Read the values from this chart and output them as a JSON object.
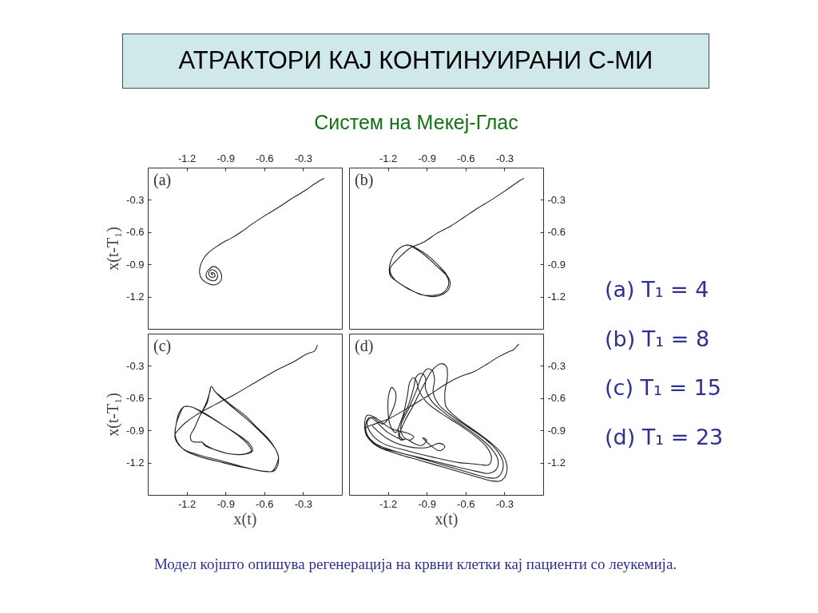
{
  "chart_data": [
    {
      "type": "line",
      "annotations": [
        "(a)"
      ],
      "xlim": [
        -1.5,
        0
      ],
      "ylim": [
        -1.5,
        0
      ],
      "xticks": [
        -1.2,
        -0.9,
        -0.6,
        -0.3
      ],
      "yticks": [
        -0.3,
        -0.6,
        -0.9,
        -1.2
      ],
      "ylabel": "x(t-T₁)",
      "series": [
        {
          "color": "#222222",
          "x": [
            -0.14,
            -0.21,
            -0.28,
            -0.39,
            -0.49,
            -0.6,
            -0.7,
            -0.78,
            -0.86,
            -0.91,
            -0.95,
            -1.01,
            -1.06,
            -1.09,
            -1.1,
            -1.08,
            -1.03,
            -0.98,
            -0.94,
            -0.93,
            -0.95,
            -0.99,
            -1.03,
            -1.05,
            -1.03,
            -0.98,
            -0.96,
            -0.97,
            -1.01,
            -1.03,
            -1.01,
            -0.98,
            -0.99,
            -1.01,
            -1.0,
            -1.0
          ],
          "values": [
            -0.1,
            -0.15,
            -0.21,
            -0.29,
            -0.37,
            -0.45,
            -0.53,
            -0.6,
            -0.66,
            -0.69,
            -0.72,
            -0.77,
            -0.83,
            -0.9,
            -0.98,
            -1.04,
            -1.08,
            -1.09,
            -1.06,
            -1.0,
            -0.95,
            -0.92,
            -0.95,
            -1.0,
            -1.04,
            -1.05,
            -1.01,
            -0.97,
            -0.95,
            -0.99,
            -1.02,
            -1.01,
            -0.98,
            -0.98,
            -1.0,
            -0.99
          ]
        }
      ]
    },
    {
      "type": "line",
      "annotations": [
        "(b)"
      ],
      "xlim": [
        -1.5,
        0
      ],
      "ylim": [
        -1.5,
        0
      ],
      "xticks": [
        -1.2,
        -0.9,
        -0.6,
        -0.3
      ],
      "yticks": [
        -0.3,
        -0.6,
        -0.9,
        -1.2
      ],
      "series": [
        {
          "color": "#222222",
          "x": [
            -0.15,
            -0.18,
            -0.3,
            -0.4,
            -0.51,
            -0.61,
            -0.71,
            -0.82,
            -0.92,
            -1.03,
            -1.09,
            -1.14,
            -1.18,
            -1.18,
            -1.14,
            -1.05,
            -0.95,
            -0.86,
            -0.78,
            -0.74,
            -0.73,
            -0.75,
            -0.82,
            -0.9,
            -0.98,
            -1.05,
            -1.1,
            -1.15,
            -1.18,
            -1.19,
            -1.18,
            -1.13,
            -1.04,
            -0.94,
            -0.85,
            -0.78,
            -0.73,
            -0.72,
            -0.75,
            -0.81,
            -0.89,
            -0.98,
            -1.04,
            -1.1,
            -1.15,
            -1.18,
            -1.19,
            -1.18
          ],
          "values": [
            -0.1,
            -0.12,
            -0.22,
            -0.3,
            -0.38,
            -0.46,
            -0.54,
            -0.61,
            -0.69,
            -0.75,
            -0.81,
            -0.87,
            -0.93,
            -0.98,
            -1.05,
            -1.12,
            -1.18,
            -1.19,
            -1.17,
            -1.12,
            -1.06,
            -1.0,
            -0.92,
            -0.83,
            -0.76,
            -0.72,
            -0.74,
            -0.8,
            -0.88,
            -0.95,
            -1.01,
            -1.06,
            -1.13,
            -1.18,
            -1.2,
            -1.18,
            -1.13,
            -1.06,
            -0.99,
            -0.91,
            -0.82,
            -0.75,
            -0.72,
            -0.74,
            -0.8,
            -0.88,
            -0.95,
            -1.01
          ]
        }
      ]
    },
    {
      "type": "line",
      "annotations": [
        "(c)"
      ],
      "xlim": [
        -1.5,
        0
      ],
      "ylim": [
        -1.5,
        0
      ],
      "xticks": [
        -1.2,
        -0.9,
        -0.6,
        -0.3
      ],
      "yticks": [
        -0.3,
        -0.6,
        -0.9,
        -1.2
      ],
      "xlabel": "x(t)",
      "ylabel": "x(t-T₁)",
      "series": [
        {
          "color": "#222222",
          "x": [
            -0.19,
            -0.21,
            -0.25,
            -0.29,
            -0.37,
            -0.49,
            -0.65,
            -0.82,
            -0.98,
            -1.13,
            -1.21,
            -1.26,
            -1.29,
            -1.28,
            -1.23,
            -1.13,
            -0.94,
            -0.76,
            -0.61,
            -0.54,
            -0.51,
            -0.49,
            -0.51,
            -0.56,
            -0.65,
            -0.76,
            -0.86,
            -0.94,
            -0.98,
            -1.01,
            -1.02,
            -1.05,
            -1.1,
            -1.14,
            -1.17,
            -1.16,
            -1.12,
            -1.08,
            -1.06,
            -0.98,
            -0.86,
            -0.75,
            -0.7,
            -0.72,
            -0.8,
            -0.92,
            -1.07,
            -1.17,
            -1.22,
            -1.26,
            -1.28,
            -1.29,
            -1.27,
            -1.22,
            -1.11,
            -0.92,
            -0.74,
            -0.6,
            -0.53,
            -0.5,
            -0.49,
            -0.51,
            -0.56,
            -0.65,
            -0.75,
            -0.86,
            -0.94,
            -0.98,
            -1.01,
            -1.02,
            -1.04,
            -1.1,
            -1.14,
            -1.17,
            -1.16,
            -1.12,
            -1.08,
            -1.05,
            -0.98,
            -0.86,
            -0.74,
            -0.69,
            -0.71,
            -0.79,
            -0.92,
            -1.06,
            -1.17,
            -1.22,
            -1.25,
            -1.28,
            -1.29
          ],
          "values": [
            -0.11,
            -0.16,
            -0.18,
            -0.2,
            -0.26,
            -0.33,
            -0.44,
            -0.56,
            -0.66,
            -0.76,
            -0.83,
            -0.89,
            -0.94,
            -1.0,
            -1.07,
            -1.12,
            -1.18,
            -1.24,
            -1.28,
            -1.28,
            -1.23,
            -1.15,
            -1.08,
            -1.0,
            -0.89,
            -0.77,
            -0.67,
            -0.59,
            -0.54,
            -0.49,
            -0.54,
            -0.65,
            -0.77,
            -0.88,
            -0.95,
            -1.0,
            -1.01,
            -1.01,
            -1.04,
            -1.08,
            -1.12,
            -1.12,
            -1.09,
            -1.04,
            -0.95,
            -0.85,
            -0.74,
            -0.68,
            -0.68,
            -0.74,
            -0.84,
            -0.93,
            -1.01,
            -1.08,
            -1.14,
            -1.2,
            -1.25,
            -1.28,
            -1.28,
            -1.24,
            -1.15,
            -1.08,
            -0.99,
            -0.88,
            -0.76,
            -0.66,
            -0.58,
            -0.54,
            -0.49,
            -0.53,
            -0.64,
            -0.77,
            -0.88,
            -0.95,
            -1.0,
            -1.01,
            -1.01,
            -1.04,
            -1.08,
            -1.12,
            -1.12,
            -1.09,
            -1.03,
            -0.95,
            -0.85,
            -0.74,
            -0.68,
            -0.68,
            -0.74,
            -0.84,
            -0.93
          ]
        }
      ]
    },
    {
      "type": "line",
      "annotations": [
        "(d)"
      ],
      "xlim": [
        -1.5,
        0
      ],
      "ylim": [
        -1.5,
        0
      ],
      "xticks": [
        -1.2,
        -0.9,
        -0.6,
        -0.3
      ],
      "yticks": [
        -0.3,
        -0.6,
        -0.9,
        -1.2
      ],
      "xlabel": "x(t)",
      "series": [
        {
          "color": "#222222",
          "x": [
            -0.19,
            -0.23,
            -0.27,
            -0.35,
            -0.43,
            -0.53,
            -0.64,
            -0.74,
            -0.88,
            -1.03,
            -1.19,
            -1.3,
            -1.37,
            -1.35,
            -1.28,
            -1.15,
            -0.95,
            -0.75,
            -0.55,
            -0.4,
            -0.33,
            -0.29,
            -0.28,
            -0.31,
            -0.39,
            -0.52,
            -0.66,
            -0.75,
            -0.76,
            -0.74,
            -0.75,
            -0.79,
            -0.85,
            -0.92,
            -1.0,
            -1.08,
            -1.11,
            -1.08,
            -1.2,
            -1.34,
            -1.37,
            -1.36,
            -1.3,
            -1.18,
            -0.98,
            -0.78,
            -0.58,
            -0.43,
            -0.36,
            -0.32,
            -0.31,
            -0.35,
            -0.44,
            -0.57,
            -0.7,
            -0.8,
            -0.85,
            -0.84,
            -0.86,
            -0.9,
            -0.94,
            -0.98,
            -1.04,
            -1.1,
            -1.08,
            -1.03,
            -1.0,
            -1.04,
            -1.18,
            -1.3,
            -1.36,
            -1.38,
            -1.36,
            -1.27,
            -1.1,
            -0.9,
            -0.7,
            -0.52,
            -0.42,
            -0.36,
            -0.35,
            -0.4,
            -0.5,
            -0.63,
            -0.76,
            -0.86,
            -0.91,
            -0.91,
            -0.94,
            -0.98,
            -1.0,
            -1.04,
            -1.1,
            -1.14,
            -1.18,
            -1.2,
            -1.19,
            -1.17,
            -1.14,
            -1.16,
            -1.24,
            -1.32,
            -1.36,
            -1.33,
            -1.24,
            -1.05,
            -0.85,
            -0.65,
            -0.55,
            -0.48,
            -0.42,
            -0.4,
            -0.44,
            -0.53,
            -0.66,
            -0.79,
            -0.9,
            -0.96,
            -0.98,
            -1.0,
            -1.03,
            -1.05,
            -1.08,
            -1.12,
            -1.1,
            -1.06,
            -1.0,
            -0.94,
            -0.9,
            -0.93,
            -0.86,
            -0.8,
            -0.76,
            -0.8,
            -0.9,
            -1.05,
            -1.2,
            -1.32
          ],
          "values": [
            -0.1,
            -0.15,
            -0.17,
            -0.22,
            -0.28,
            -0.35,
            -0.4,
            -0.46,
            -0.57,
            -0.68,
            -0.79,
            -0.84,
            -0.88,
            -0.97,
            -1.05,
            -1.11,
            -1.18,
            -1.25,
            -1.32,
            -1.37,
            -1.37,
            -1.32,
            -1.23,
            -1.13,
            -1.03,
            -0.91,
            -0.79,
            -0.68,
            -0.55,
            -0.4,
            -0.3,
            -0.28,
            -0.33,
            -0.47,
            -0.66,
            -0.84,
            -0.95,
            -0.99,
            -0.92,
            -0.78,
            -0.84,
            -0.94,
            -1.02,
            -1.08,
            -1.15,
            -1.22,
            -1.29,
            -1.34,
            -1.34,
            -1.29,
            -1.2,
            -1.1,
            -0.99,
            -0.88,
            -0.77,
            -0.67,
            -0.55,
            -0.42,
            -0.34,
            -0.33,
            -0.4,
            -0.53,
            -0.7,
            -0.86,
            -0.96,
            -0.99,
            -0.96,
            -0.93,
            -0.88,
            -0.78,
            -0.76,
            -0.86,
            -0.96,
            -1.05,
            -1.11,
            -1.17,
            -1.23,
            -1.28,
            -1.3,
            -1.26,
            -1.17,
            -1.07,
            -0.96,
            -0.85,
            -0.74,
            -0.63,
            -0.51,
            -0.41,
            -0.37,
            -0.4,
            -0.5,
            -0.66,
            -0.82,
            -0.92,
            -0.86,
            -0.7,
            -0.55,
            -0.5,
            -0.55,
            -0.7,
            -0.84,
            -0.78,
            -0.82,
            -0.93,
            -1.02,
            -1.09,
            -1.15,
            -1.2,
            -1.21,
            -1.22,
            -1.22,
            -1.15,
            -1.05,
            -0.95,
            -0.84,
            -0.74,
            -0.64,
            -0.53,
            -0.44,
            -0.41,
            -0.45,
            -0.58,
            -0.75,
            -0.9,
            -0.99,
            -0.98,
            -1.02,
            -1.04,
            -0.99,
            -0.97,
            -1.05,
            -1.09,
            -1.05,
            -1.02,
            -1.06,
            -1.05,
            -0.98,
            -0.86
          ]
        }
      ]
    },
    {
      "type": "other",
      "title": "АТРАКТОРИ КАЈ КОНТИНУИРАНИ С-МИ",
      "subtitle": "Систем на Мекеј-Глас",
      "annotations": [
        "(a) T₁ = 4",
        "(b) T₁ = 8",
        "(c) T₁ = 15",
        "(d) T₁ = 23",
        "Модел којшто опишува регенерација на крвни клетки кај пациенти со леукемија."
      ]
    }
  ]
}
